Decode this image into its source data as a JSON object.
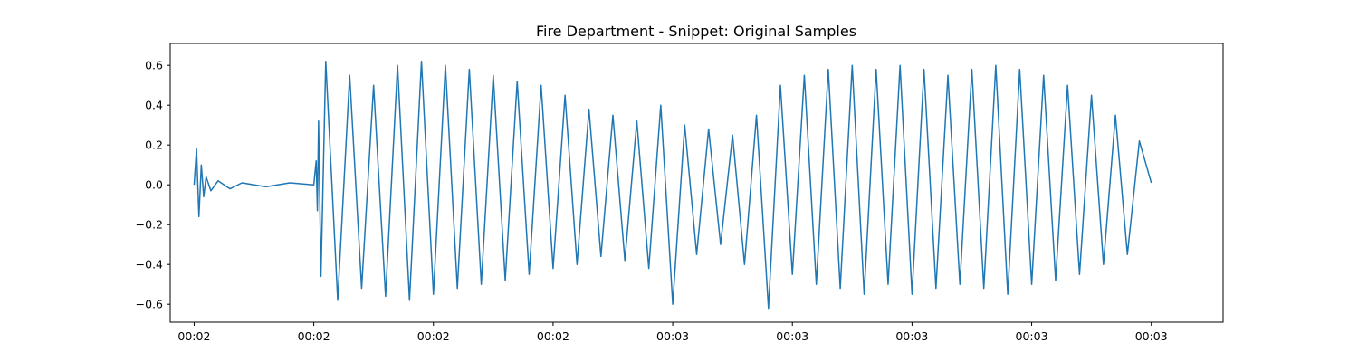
{
  "chart_data": {
    "type": "line",
    "title": "Fire Department - Snippet: Original Samples",
    "xlabel": "",
    "ylabel": "",
    "grid": false,
    "legend": "none",
    "xlim": [
      -0.1,
      4.3
    ],
    "ylim": [
      -0.69,
      0.71
    ],
    "x_ticks": [
      {
        "value": 0.0,
        "label": "00:02"
      },
      {
        "value": 0.5,
        "label": "00:02"
      },
      {
        "value": 1.0,
        "label": "00:02"
      },
      {
        "value": 1.5,
        "label": "00:02"
      },
      {
        "value": 2.0,
        "label": "00:03"
      },
      {
        "value": 2.5,
        "label": "00:03"
      },
      {
        "value": 3.0,
        "label": "00:03"
      },
      {
        "value": 3.5,
        "label": "00:03"
      },
      {
        "value": 4.0,
        "label": "00:03"
      }
    ],
    "y_ticks": [
      {
        "value": 0.6,
        "label": "0.6"
      },
      {
        "value": 0.4,
        "label": "0.4"
      },
      {
        "value": 0.2,
        "label": "0.2"
      },
      {
        "value": 0.0,
        "label": "0.0"
      },
      {
        "value": -0.2,
        "label": "−0.2"
      },
      {
        "value": -0.4,
        "label": "−0.4"
      },
      {
        "value": -0.6,
        "label": "−0.6"
      }
    ],
    "series": [
      {
        "color": "#1f77b4",
        "x": [
          0.0,
          0.01,
          0.02,
          0.03,
          0.04,
          0.05,
          0.07,
          0.1,
          0.15,
          0.2,
          0.3,
          0.4,
          0.5,
          0.51,
          0.515,
          0.52,
          0.53,
          0.55,
          0.6,
          0.65,
          0.7,
          0.75,
          0.8,
          0.85,
          0.9,
          0.95,
          1.0,
          1.05,
          1.1,
          1.15,
          1.2,
          1.25,
          1.3,
          1.35,
          1.4,
          1.45,
          1.5,
          1.55,
          1.6,
          1.65,
          1.7,
          1.75,
          1.8,
          1.85,
          1.9,
          1.95,
          2.0,
          2.05,
          2.1,
          2.15,
          2.2,
          2.25,
          2.3,
          2.35,
          2.4,
          2.45,
          2.5,
          2.55,
          2.6,
          2.65,
          2.7,
          2.75,
          2.8,
          2.85,
          2.9,
          2.95,
          3.0,
          3.05,
          3.1,
          3.15,
          3.2,
          3.25,
          3.3,
          3.35,
          3.4,
          3.45,
          3.5,
          3.55,
          3.6,
          3.65,
          3.7,
          3.75,
          3.8,
          3.85,
          3.9,
          3.95,
          4.0
        ],
        "y": [
          0.0,
          0.18,
          -0.16,
          0.1,
          -0.06,
          0.04,
          -0.03,
          0.02,
          -0.02,
          0.01,
          -0.01,
          0.01,
          0.0,
          0.12,
          -0.13,
          0.32,
          -0.46,
          0.62,
          -0.58,
          0.55,
          -0.52,
          0.5,
          -0.56,
          0.6,
          -0.58,
          0.62,
          -0.55,
          0.6,
          -0.52,
          0.58,
          -0.5,
          0.55,
          -0.48,
          0.52,
          -0.45,
          0.5,
          -0.42,
          0.45,
          -0.4,
          0.38,
          -0.36,
          0.35,
          -0.38,
          0.32,
          -0.42,
          0.4,
          -0.6,
          0.3,
          -0.35,
          0.28,
          -0.3,
          0.25,
          -0.4,
          0.35,
          -0.62,
          0.5,
          -0.45,
          0.55,
          -0.5,
          0.58,
          -0.52,
          0.6,
          -0.55,
          0.58,
          -0.5,
          0.6,
          -0.55,
          0.58,
          -0.52,
          0.55,
          -0.5,
          0.58,
          -0.52,
          0.6,
          -0.55,
          0.58,
          -0.5,
          0.55,
          -0.48,
          0.5,
          -0.45,
          0.45,
          -0.4,
          0.35,
          -0.35,
          0.22,
          0.01
        ]
      }
    ]
  }
}
